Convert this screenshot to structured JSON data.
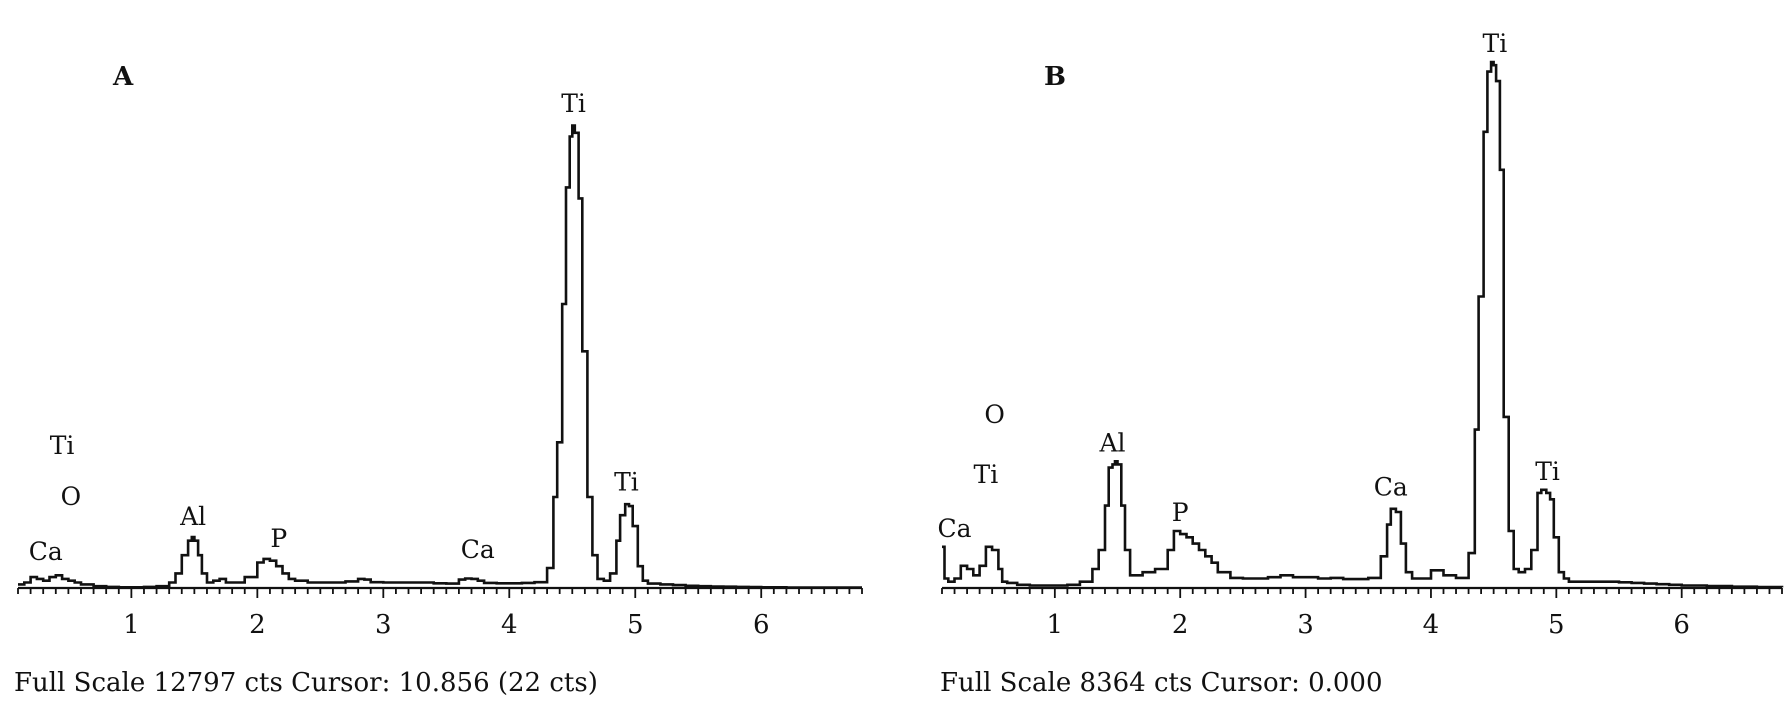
{
  "chart_data": [
    {
      "type": "line",
      "panel_label": "A",
      "footer": "Full Scale 12797 cts Cursor: 10.856 (22 cts)",
      "xlim": [
        0.1,
        6.8
      ],
      "ylim": [
        0,
        12797
      ],
      "xticks": [
        "1",
        "2",
        "3",
        "4",
        "5",
        "6"
      ],
      "grid": false,
      "legend": "none",
      "series": [
        {
          "x": [
            0.1,
            0.15,
            0.2,
            0.25,
            0.3,
            0.35,
            0.4,
            0.45,
            0.5,
            0.55,
            0.6,
            0.7,
            0.8,
            0.9,
            1.0,
            1.1,
            1.2,
            1.3,
            1.35,
            1.4,
            1.45,
            1.48,
            1.5,
            1.53,
            1.56,
            1.6,
            1.65,
            1.7,
            1.75,
            1.8,
            1.9,
            2.0,
            2.05,
            2.1,
            2.15,
            2.2,
            2.25,
            2.3,
            2.4,
            2.5,
            2.6,
            2.7,
            2.8,
            2.85,
            2.9,
            3.0,
            3.1,
            3.2,
            3.3,
            3.4,
            3.5,
            3.6,
            3.65,
            3.7,
            3.75,
            3.8,
            3.9,
            4.0,
            4.1,
            4.2,
            4.3,
            4.35,
            4.38,
            4.42,
            4.45,
            4.48,
            4.5,
            4.52,
            4.55,
            4.58,
            4.62,
            4.66,
            4.7,
            4.75,
            4.8,
            4.85,
            4.88,
            4.92,
            4.95,
            4.98,
            5.02,
            5.06,
            5.1,
            5.2,
            5.3,
            5.4,
            5.5,
            5.6,
            5.7,
            5.8,
            5.9,
            6.0,
            6.2,
            6.4,
            6.6,
            6.8
          ],
          "values": [
            100,
            150,
            300,
            250,
            200,
            300,
            350,
            250,
            200,
            150,
            100,
            50,
            30,
            20,
            20,
            30,
            50,
            150,
            400,
            900,
            1300,
            1400,
            1300,
            900,
            400,
            150,
            200,
            250,
            150,
            150,
            300,
            700,
            800,
            750,
            600,
            400,
            250,
            200,
            150,
            150,
            150,
            180,
            250,
            230,
            160,
            150,
            150,
            150,
            150,
            130,
            120,
            230,
            260,
            250,
            200,
            140,
            130,
            130,
            140,
            160,
            550,
            2500,
            4000,
            7800,
            11000,
            12400,
            12700,
            12500,
            10700,
            6500,
            2500,
            900,
            250,
            200,
            400,
            1300,
            2000,
            2300,
            2250,
            1700,
            600,
            200,
            120,
            100,
            80,
            60,
            50,
            40,
            35,
            30,
            25,
            20,
            15,
            15,
            10,
            10
          ]
        }
      ],
      "annotations": [
        {
          "text": "Ti",
          "x": 4.51,
          "y": 12800
        },
        {
          "text": "Ti",
          "x": 4.93,
          "y": 2400
        },
        {
          "text": "Ti",
          "x": 0.45,
          "y": 3400
        },
        {
          "text": "O",
          "x": 0.52,
          "y": 2000
        },
        {
          "text": "Ca",
          "x": 0.32,
          "y": 500
        },
        {
          "text": "Al",
          "x": 1.49,
          "y": 1450
        },
        {
          "text": "P",
          "x": 2.17,
          "y": 850
        },
        {
          "text": "Ca",
          "x": 3.75,
          "y": 550
        }
      ]
    },
    {
      "type": "line",
      "panel_label": "B",
      "footer": "Full Scale 8364 cts Cursor: 0.000",
      "xlim": [
        0.1,
        6.8
      ],
      "ylim": [
        0,
        8364
      ],
      "xticks": [
        "1",
        "2",
        "3",
        "4",
        "5",
        "6"
      ],
      "grid": false,
      "legend": "none",
      "series": [
        {
          "x": [
            0.1,
            0.12,
            0.15,
            0.2,
            0.25,
            0.3,
            0.35,
            0.4,
            0.45,
            0.5,
            0.55,
            0.58,
            0.62,
            0.7,
            0.8,
            0.9,
            1.0,
            1.1,
            1.2,
            1.3,
            1.35,
            1.4,
            1.43,
            1.46,
            1.48,
            1.5,
            1.53,
            1.56,
            1.6,
            1.65,
            1.7,
            1.8,
            1.9,
            1.95,
            2.0,
            2.05,
            2.1,
            2.15,
            2.2,
            2.25,
            2.3,
            2.4,
            2.5,
            2.6,
            2.7,
            2.8,
            2.9,
            3.0,
            3.1,
            3.2,
            3.3,
            3.4,
            3.5,
            3.6,
            3.65,
            3.68,
            3.72,
            3.76,
            3.8,
            3.85,
            3.9,
            4.0,
            4.1,
            4.2,
            4.3,
            4.35,
            4.38,
            4.42,
            4.45,
            4.48,
            4.5,
            4.52,
            4.55,
            4.58,
            4.62,
            4.66,
            4.7,
            4.75,
            4.8,
            4.85,
            4.88,
            4.92,
            4.95,
            4.98,
            5.02,
            5.06,
            5.1,
            5.2,
            5.3,
            5.4,
            5.5,
            5.6,
            5.7,
            5.8,
            5.9,
            6.0,
            6.2,
            6.4,
            6.6,
            6.8
          ],
          "values": [
            650,
            150,
            100,
            150,
            350,
            300,
            200,
            350,
            650,
            600,
            300,
            100,
            80,
            50,
            40,
            40,
            40,
            50,
            100,
            300,
            600,
            1300,
            1900,
            1950,
            2000,
            1950,
            1300,
            600,
            200,
            200,
            250,
            300,
            600,
            900,
            850,
            800,
            700,
            600,
            500,
            400,
            250,
            160,
            150,
            150,
            170,
            200,
            170,
            170,
            150,
            160,
            140,
            140,
            160,
            500,
            1000,
            1250,
            1200,
            700,
            250,
            150,
            150,
            280,
            200,
            160,
            550,
            2500,
            4600,
            7200,
            8150,
            8300,
            8250,
            8000,
            6600,
            2700,
            900,
            300,
            250,
            300,
            600,
            1500,
            1550,
            1500,
            1400,
            800,
            250,
            150,
            100,
            100,
            100,
            100,
            90,
            80,
            70,
            60,
            50,
            40,
            30,
            20,
            15,
            10
          ]
        }
      ],
      "annotations": [
        {
          "text": "Ti",
          "x": 4.51,
          "y": 8300
        },
        {
          "text": "Ti",
          "x": 4.93,
          "y": 1550
        },
        {
          "text": "Ti",
          "x": 0.45,
          "y": 1500
        },
        {
          "text": "O",
          "x": 0.52,
          "y": 2450
        },
        {
          "text": "Ca",
          "x": 0.2,
          "y": 650
        },
        {
          "text": "Al",
          "x": 1.46,
          "y": 2000
        },
        {
          "text": "P",
          "x": 2.0,
          "y": 900
        },
        {
          "text": "Ca",
          "x": 3.68,
          "y": 1300
        }
      ]
    }
  ]
}
